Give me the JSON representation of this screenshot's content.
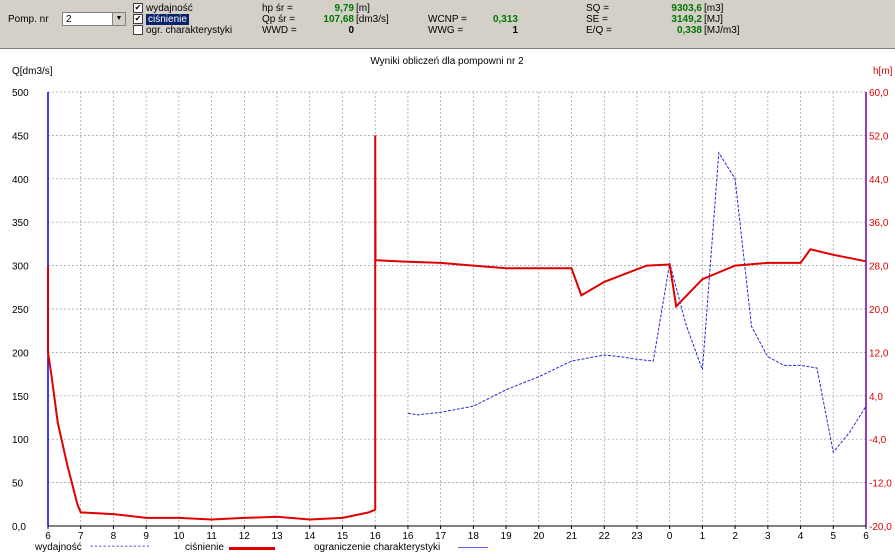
{
  "toolbar": {
    "pump_label": "Pomp. nr",
    "pump_value": "2",
    "checkboxes": [
      {
        "label": "wydajność",
        "checked": true
      },
      {
        "label": "ciśnienie",
        "checked": true
      },
      {
        "label": "ogr. charakterystyki",
        "checked": false
      }
    ],
    "stats": {
      "hp_label": "hp śr =",
      "hp_value": "9,79",
      "hp_unit": "[m]",
      "qp_label": "Qp śr =",
      "qp_value": "107,68",
      "qp_unit": "[dm3/s]",
      "wwd_label": "WWD =",
      "wwd_value": "0",
      "wcnp_label": "WCNP =",
      "wcnp_value": "0,313",
      "wwg_label": "WWG =",
      "wwg_value": "1",
      "sq_label": "SQ =",
      "sq_value": "9303,6",
      "sq_unit": "[m3]",
      "se_label": "SE =",
      "se_value": "3149,2",
      "se_unit": "[MJ]",
      "eq_label": "E/Q =",
      "eq_value": "0,338",
      "eq_unit": "[MJ/m3]"
    }
  },
  "chart_data": {
    "type": "line",
    "title": "Wyniki obliczeń dla pompowni nr 2",
    "ylabel_left": "Q[dm3/s]",
    "ylabel_right": "h[m]",
    "x_ticks": [
      "6",
      "7",
      "8",
      "9",
      "10",
      "11",
      "12",
      "13",
      "14",
      "15",
      "16",
      "16",
      "17",
      "18",
      "19",
      "20",
      "21",
      "22",
      "23",
      "0",
      "1",
      "2",
      "3",
      "4",
      "5",
      "6"
    ],
    "y_left_ticks": [
      "0,0",
      "50",
      "100",
      "150",
      "200",
      "250",
      "300",
      "350",
      "400",
      "450",
      "500"
    ],
    "y_right_ticks": [
      "-20,0",
      "-12,0",
      "-4,0",
      "4,0",
      "12,0",
      "20,0",
      "28,0",
      "36,0",
      "44,0",
      "52,0",
      "60,0"
    ],
    "ylim_left": [
      0,
      500
    ],
    "ylim_right": [
      -20,
      60
    ],
    "grid": true,
    "series": [
      {
        "name": "wydajność",
        "axis": "left",
        "color": "#2a2ad8",
        "x": [
          11,
          11.3,
          12,
          13,
          14,
          15,
          16,
          17,
          17.5,
          18,
          18.5,
          19,
          19.5,
          20,
          20.5,
          21,
          21.5,
          22,
          22.5,
          23,
          23.5,
          24,
          24.5,
          25
        ],
        "y": [
          130,
          128,
          131,
          138,
          157,
          172,
          190,
          197,
          195,
          192,
          190,
          303,
          232,
          180,
          430,
          400,
          230,
          195,
          185,
          185,
          182,
          85,
          108,
          138
        ]
      },
      {
        "name": "ciśnienie",
        "axis": "right",
        "color": "#e00000",
        "x": [
          0,
          0,
          0.1,
          0.3,
          0.6,
          0.9,
          1,
          2,
          3,
          4,
          5,
          6,
          7,
          8,
          9,
          9.8,
          10,
          10,
          10.01,
          11,
          12,
          13,
          14,
          15,
          16,
          16.3,
          17,
          18.3,
          19,
          19.2,
          20,
          21,
          22,
          23,
          23.3,
          24,
          25
        ],
        "y": [
          28,
          12,
          8,
          -1,
          -9,
          -16,
          -17.5,
          -17.8,
          -18.5,
          -18.5,
          -18.8,
          -18.5,
          -18.3,
          -18.8,
          -18.5,
          -17.5,
          -17,
          52,
          29,
          28.7,
          28.5,
          28,
          27.5,
          27.5,
          27.5,
          22.5,
          25,
          28,
          28.2,
          20.5,
          25.5,
          28,
          28.5,
          28.5,
          31,
          30,
          28.8
        ]
      }
    ],
    "legend": [
      "wydajność",
      "ciśnienie",
      "ograniczenie charakterystyki"
    ],
    "legend_placement": "bottom",
    "colors": {
      "q_axis": "#0000ff",
      "h_axis": "#7000a0",
      "h_label": "#e00000",
      "limit": "#6060ff"
    }
  }
}
